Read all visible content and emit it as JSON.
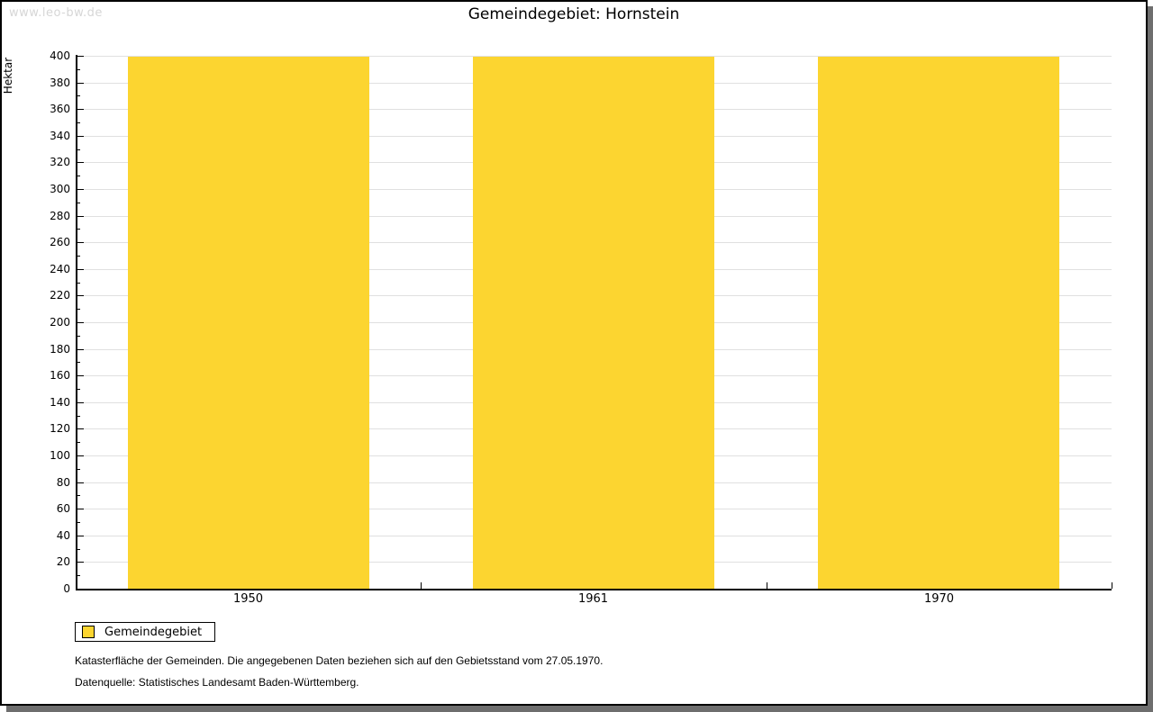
{
  "watermark": "www.leo-bw.de",
  "title": "Gemeindegebiet: Hornstein",
  "legend": {
    "label": "Gemeindegebiet"
  },
  "footnotes": {
    "line1": "Katasterfläche der Gemeinden. Die angegebenen Daten beziehen sich auf den Gebietsstand vom 27.05.1970.",
    "line2": "Datenquelle: Statistisches Landesamt Baden-Württemberg."
  },
  "colors": {
    "bar": "#fcd530",
    "gridline": "#e0e0e0",
    "axis": "#000000",
    "watermark": "#d6d6d6",
    "frame_shadow": "#6e6e6e"
  },
  "chart_data": {
    "type": "bar",
    "title": "Gemeindegebiet: Hornstein",
    "categories": [
      "1950",
      "1961",
      "1970"
    ],
    "values": [
      399,
      399,
      399
    ],
    "series_name": "Gemeindegebiet",
    "xlabel": "",
    "ylabel": "Hektar",
    "ylim": [
      0,
      400
    ],
    "ytick_step": 20,
    "yminor_step": 10,
    "grid": true,
    "legend_position": "bottom-left",
    "bar_color": "#fcd530"
  }
}
